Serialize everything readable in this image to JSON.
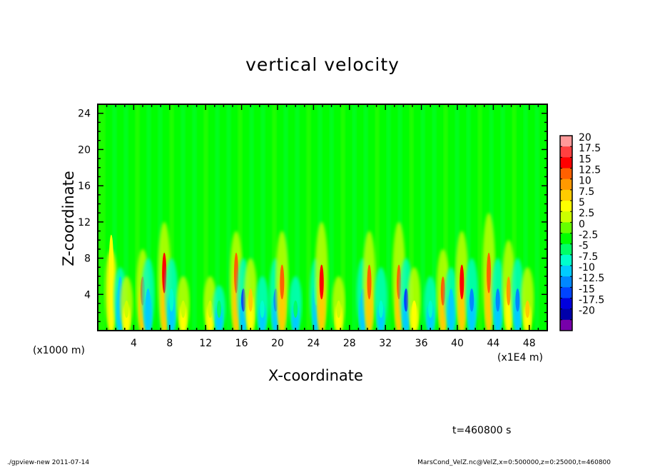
{
  "chart_data": {
    "type": "heatmap",
    "title": "vertical velocity",
    "xlabel": "X-coordinate",
    "ylabel": "Z-coordinate",
    "x_unit": "(x1E4 m)",
    "y_unit": "(x1000 m)",
    "xlim": [
      0,
      50
    ],
    "ylim": [
      0,
      25
    ],
    "x_ticks": [
      "4",
      "8",
      "12",
      "16",
      "20",
      "24",
      "28",
      "32",
      "36",
      "40",
      "44",
      "48"
    ],
    "y_ticks": [
      "4",
      "8",
      "12",
      "16",
      "20",
      "24"
    ],
    "colorbar": {
      "levels": [
        "20",
        "17.5",
        "15",
        "12.5",
        "10",
        "7.5",
        "5",
        "2.5",
        "0",
        "-2.5",
        "-5",
        "-7.5",
        "-10",
        "-12.5",
        "-15",
        "-17.5",
        "-20"
      ],
      "colors": [
        "#ff9999",
        "#ff4040",
        "#ff0000",
        "#ff6000",
        "#ff9900",
        "#ffcc00",
        "#ffff00",
        "#ccff00",
        "#66ff00",
        "#00ff00",
        "#00ff66",
        "#00ffcc",
        "#00ccff",
        "#0088ff",
        "#0044ff",
        "#0000dd",
        "#0000aa",
        "#7700aa"
      ]
    },
    "cells": [
      {
        "x": 1.5,
        "peak": 8.5,
        "top": 9,
        "value": 6
      },
      {
        "x": 2.5,
        "peak": 5,
        "top": 7,
        "value": -8
      },
      {
        "x": 3.2,
        "peak": 3,
        "top": 6,
        "value": 4
      },
      {
        "x": 5.0,
        "peak": 5,
        "top": 9,
        "value": 13
      },
      {
        "x": 5.6,
        "peak": 4,
        "top": 8,
        "value": -9
      },
      {
        "x": 7.4,
        "peak": 7,
        "top": 12,
        "value": 16
      },
      {
        "x": 8.2,
        "peak": 4,
        "top": 8,
        "value": -6
      },
      {
        "x": 9.5,
        "peak": 3,
        "top": 6,
        "value": 4
      },
      {
        "x": 12.5,
        "peak": 3,
        "top": 6,
        "value": 3
      },
      {
        "x": 13.5,
        "peak": 3,
        "top": 5,
        "value": -4
      },
      {
        "x": 15.4,
        "peak": 7,
        "top": 11,
        "value": 15
      },
      {
        "x": 16.2,
        "peak": 4,
        "top": 8,
        "value": -14
      },
      {
        "x": 17.0,
        "peak": 4,
        "top": 8,
        "value": 9
      },
      {
        "x": 18.3,
        "peak": 3,
        "top": 6,
        "value": -5
      },
      {
        "x": 19.8,
        "peak": 4,
        "top": 8,
        "value": -12
      },
      {
        "x": 20.5,
        "peak": 6,
        "top": 11,
        "value": 14
      },
      {
        "x": 22.0,
        "peak": 3,
        "top": 6,
        "value": -4
      },
      {
        "x": 24.3,
        "peak": 5,
        "top": 8,
        "value": -7
      },
      {
        "x": 24.9,
        "peak": 6,
        "top": 12,
        "value": 16
      },
      {
        "x": 26.8,
        "peak": 3,
        "top": 6,
        "value": 4
      },
      {
        "x": 29.5,
        "peak": 4,
        "top": 8,
        "value": -8
      },
      {
        "x": 30.2,
        "peak": 6,
        "top": 11,
        "value": 13
      },
      {
        "x": 31.5,
        "peak": 3,
        "top": 7,
        "value": -5
      },
      {
        "x": 33.5,
        "peak": 6,
        "top": 12,
        "value": 15
      },
      {
        "x": 34.3,
        "peak": 4,
        "top": 8,
        "value": -14
      },
      {
        "x": 35.2,
        "peak": 3,
        "top": 7,
        "value": 6
      },
      {
        "x": 37.0,
        "peak": 3,
        "top": 6,
        "value": -6
      },
      {
        "x": 38.4,
        "peak": 5,
        "top": 9,
        "value": 13
      },
      {
        "x": 39.3,
        "peak": 4,
        "top": 7,
        "value": -9
      },
      {
        "x": 40.5,
        "peak": 6,
        "top": 11,
        "value": 16
      },
      {
        "x": 41.6,
        "peak": 4,
        "top": 8,
        "value": -12
      },
      {
        "x": 43.5,
        "peak": 7,
        "top": 13,
        "value": 15
      },
      {
        "x": 44.5,
        "peak": 4,
        "top": 8,
        "value": -10
      },
      {
        "x": 45.7,
        "peak": 5,
        "top": 10,
        "value": 12
      },
      {
        "x": 46.7,
        "peak": 4,
        "top": 8,
        "value": -11
      },
      {
        "x": 47.8,
        "peak": 3,
        "top": 7,
        "value": 9
      }
    ]
  },
  "annotation_time": "t=460800 s",
  "footer_left": "./gpview-new   2011-07-14",
  "footer_right": "MarsCond_VelZ.nc@VelZ,x=0:500000,z=0:25000,t=460800"
}
